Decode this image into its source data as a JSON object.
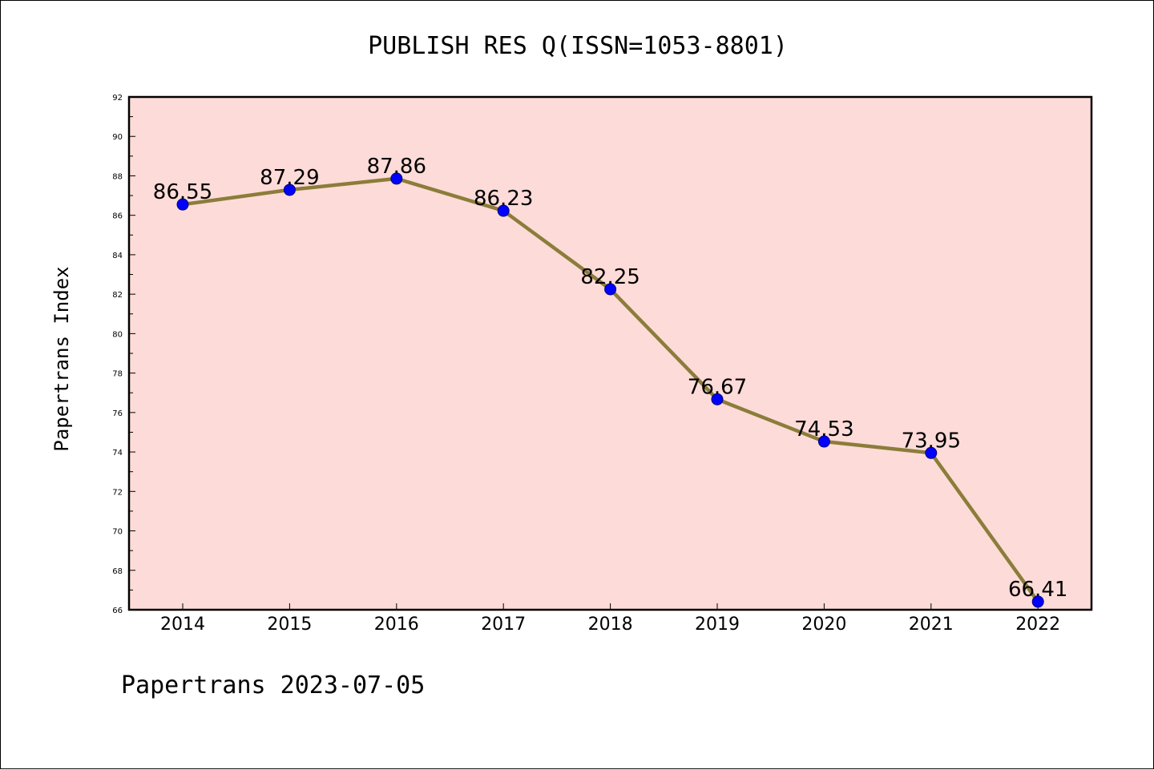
{
  "chart_data": {
    "type": "line",
    "title": "PUBLISH RES Q(ISSN=1053-8801)",
    "ylabel": "Papertrans Index",
    "xlabel": "",
    "footer": "Papertrans 2023-07-05",
    "categories": [
      "2014",
      "2015",
      "2016",
      "2017",
      "2018",
      "2019",
      "2020",
      "2021",
      "2022"
    ],
    "values": [
      86.55,
      87.29,
      87.86,
      86.23,
      82.25,
      76.67,
      74.53,
      73.95,
      66.41
    ],
    "value_labels": [
      "86.55",
      "87.29",
      "87.86",
      "86.23",
      "82.25",
      "76.67",
      "74.53",
      "73.95",
      "66.41"
    ],
    "ylim": [
      66,
      92
    ],
    "yticks": [
      66,
      68,
      70,
      72,
      74,
      76,
      78,
      80,
      82,
      84,
      86,
      88,
      90,
      92
    ],
    "ytick_labels": [
      "66",
      "68",
      "70",
      "72",
      "74",
      "76",
      "78",
      "80",
      "82",
      "84",
      "86",
      "88",
      "90",
      "92"
    ],
    "grid": false,
    "colors": {
      "plot_background": "#fddbd8",
      "line": "#8b7d3a",
      "marker": "#0000ff",
      "marker_edge": "#00007a"
    }
  }
}
